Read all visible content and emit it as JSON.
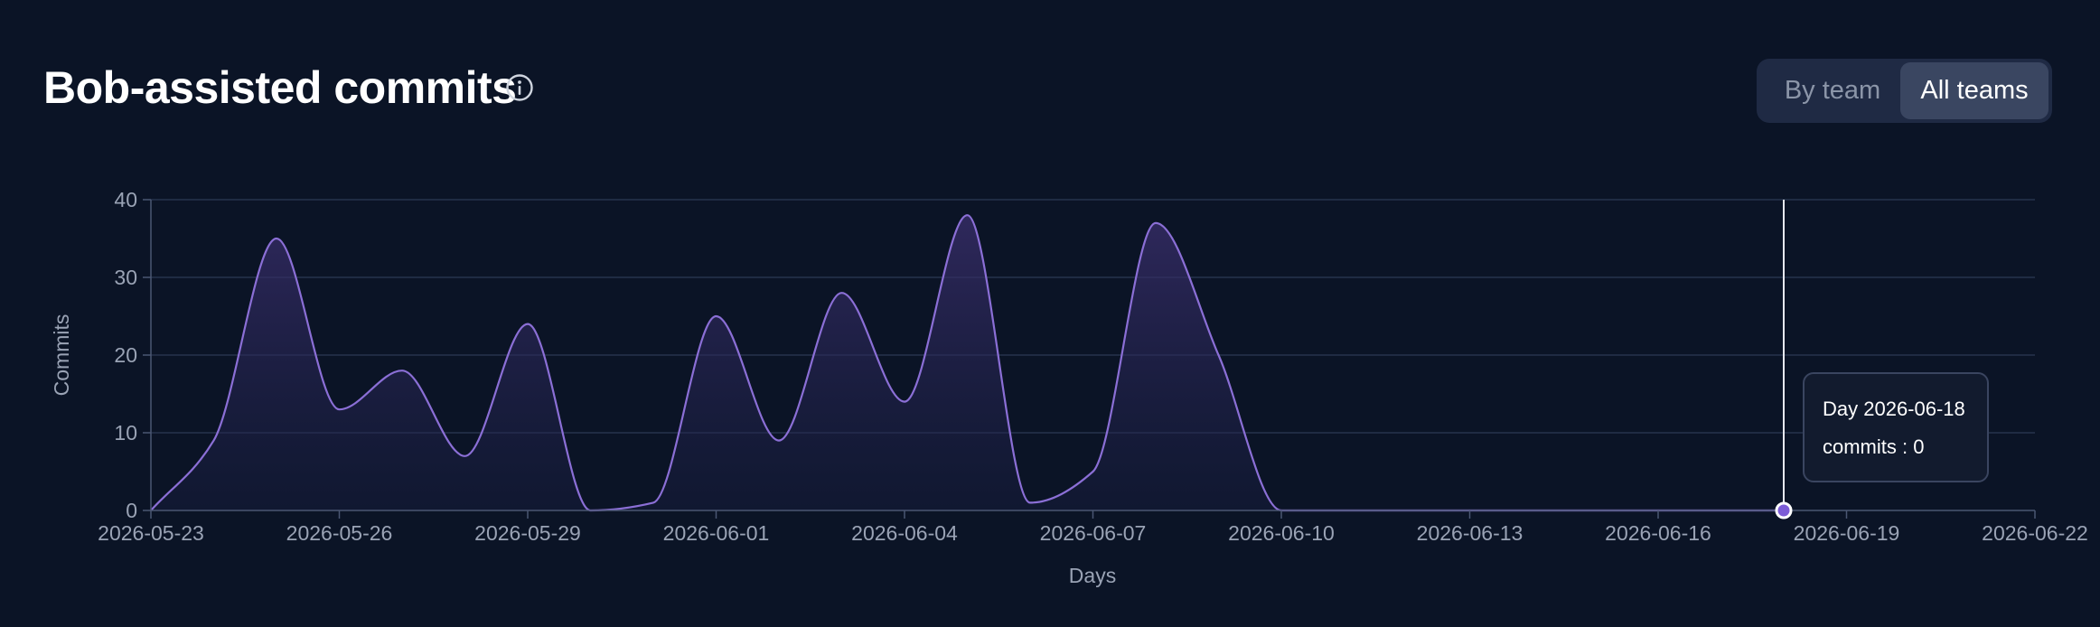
{
  "header": {
    "title": "Bob-assisted commits",
    "info_icon": "info-circle-icon"
  },
  "toggle": {
    "by_team_label": "By team",
    "all_teams_label": "All teams",
    "selected": "All teams"
  },
  "tooltip": {
    "title": "Day 2026-06-18",
    "value_text": "commits : 0"
  },
  "colors": {
    "background": "#0b1426",
    "line": "#8b6fd6",
    "area_top": "#3b2f6e",
    "grid": "#26334d",
    "cursor": "#e6e8ee"
  },
  "chart_data": {
    "type": "area",
    "title": "",
    "xlabel": "Days",
    "ylabel": "Commits",
    "ylim": [
      0,
      40
    ],
    "y_ticks": [
      "0",
      "10",
      "20",
      "30",
      "40"
    ],
    "x_ticks": [
      "2026-05-23",
      "2026-05-26",
      "2026-05-29",
      "2026-06-01",
      "2026-06-04",
      "2026-06-07",
      "2026-06-10",
      "2026-06-13",
      "2026-06-16",
      "2026-06-19",
      "2026-06-22"
    ],
    "x_range": [
      "2026-05-23",
      "2026-06-22"
    ],
    "grid": true,
    "legend": "none",
    "series": [
      {
        "x": [
          "2026-05-23",
          "2026-05-24",
          "2026-05-25",
          "2026-05-26",
          "2026-05-27",
          "2026-05-28",
          "2026-05-29",
          "2026-05-30",
          "2026-05-31",
          "2026-06-01",
          "2026-06-02",
          "2026-06-03",
          "2026-06-04",
          "2026-06-05",
          "2026-06-06",
          "2026-06-07",
          "2026-06-08",
          "2026-06-09",
          "2026-06-10",
          "2026-06-11",
          "2026-06-12",
          "2026-06-13",
          "2026-06-14",
          "2026-06-15",
          "2026-06-16",
          "2026-06-17",
          "2026-06-18"
        ],
        "values": [
          0,
          9,
          35,
          13,
          18,
          7,
          24,
          0,
          1,
          25,
          9,
          28,
          14,
          38,
          1,
          5,
          37,
          20,
          0,
          0,
          0,
          0,
          0,
          0,
          0,
          0,
          0
        ]
      }
    ],
    "highlight": {
      "x": "2026-06-18",
      "y": 0
    }
  }
}
